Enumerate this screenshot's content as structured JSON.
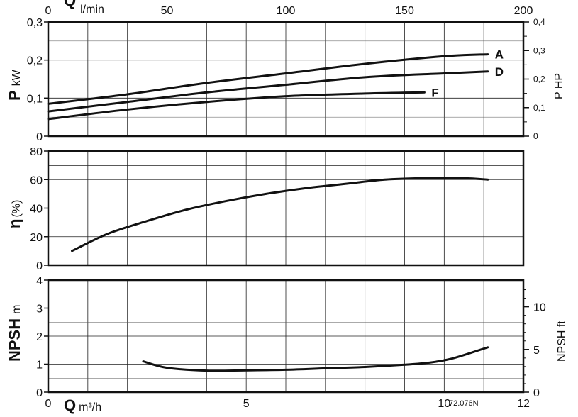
{
  "chart_data": [
    {
      "type": "line",
      "panel": "power",
      "ylabel_symbol": "P",
      "ylabel_unit": "kW",
      "y2label": "P HP",
      "ylim": [
        0,
        0.3
      ],
      "yticks": [
        "0",
        "0,1",
        "0,2",
        "0,3"
      ],
      "y2lim": [
        0,
        0.4
      ],
      "y2ticks": [
        "0",
        "0,1",
        "0,2",
        "0,3",
        "0,4"
      ],
      "x_top_label_symbol": "Q",
      "x_top_label_unit": "l/min",
      "x_top_ticks": [
        "0",
        "50",
        "100",
        "150",
        "200"
      ],
      "grid": true,
      "series": [
        {
          "name": "A",
          "x": [
            0,
            2,
            4,
            6,
            8,
            10,
            11.1
          ],
          "y": [
            0.085,
            0.11,
            0.14,
            0.165,
            0.19,
            0.21,
            0.215
          ]
        },
        {
          "name": "D",
          "x": [
            0,
            2,
            4,
            6,
            8,
            10,
            11.1
          ],
          "y": [
            0.065,
            0.09,
            0.115,
            0.135,
            0.155,
            0.165,
            0.17
          ]
        },
        {
          "name": "F",
          "x": [
            0,
            2,
            4,
            6,
            8,
            9.5
          ],
          "y": [
            0.045,
            0.07,
            0.09,
            0.105,
            0.112,
            0.115
          ]
        }
      ]
    },
    {
      "type": "line",
      "panel": "efficiency",
      "ylabel_symbol": "η",
      "ylabel_unit": "(%)",
      "ylim": [
        0,
        80
      ],
      "yticks": [
        "0",
        "20",
        "40",
        "60",
        "80"
      ],
      "grid": true,
      "series": [
        {
          "x": [
            0.6,
            1.5,
            2.5,
            3.5,
            4.5,
            5.5,
            6.5,
            7.5,
            8.5,
            9.5,
            10.5,
            11.1
          ],
          "y": [
            10,
            22,
            31,
            39,
            45,
            50,
            54,
            57,
            60,
            61,
            61,
            60
          ]
        }
      ]
    },
    {
      "type": "line",
      "panel": "npsh",
      "ylabel_symbol": "NPSH",
      "ylabel_unit": "m",
      "y2label": "NPSH ft",
      "ylim": [
        0,
        4
      ],
      "yticks": [
        "0",
        "1",
        "2",
        "3",
        "4"
      ],
      "y2ticks": [
        "0",
        "5",
        "10"
      ],
      "xlabel_symbol": "Q",
      "xlabel_unit": "m³/h",
      "xlim": [
        0,
        12
      ],
      "xticks": [
        "0",
        "5",
        "10",
        "12"
      ],
      "grid": true,
      "series": [
        {
          "x": [
            2.4,
            3.0,
            4.0,
            5.0,
            6.0,
            7.0,
            8.0,
            9.0,
            9.6,
            10.2,
            11.1
          ],
          "y": [
            1.1,
            0.87,
            0.77,
            0.78,
            0.8,
            0.85,
            0.9,
            0.98,
            1.05,
            1.2,
            1.6
          ]
        }
      ]
    }
  ],
  "figure_code": "72.076N"
}
